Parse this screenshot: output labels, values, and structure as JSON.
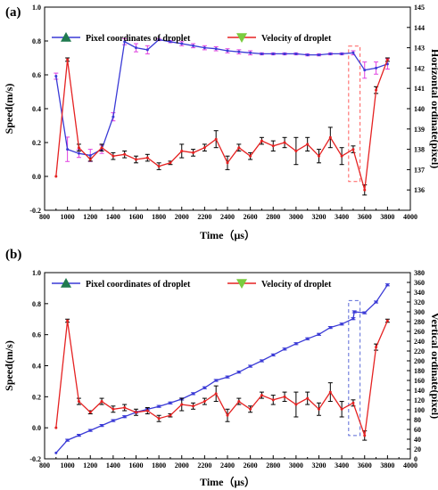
{
  "chart_data": [
    {
      "panel_label": "(a)",
      "type": "line",
      "xlabel": "Time（μs）",
      "ylabel": "Speed(m/s)",
      "y2label": "Horizontal ordinate(pixel)",
      "xlim": [
        800,
        4000
      ],
      "ylim": [
        -0.2,
        1.0
      ],
      "y2lim": [
        135,
        145
      ],
      "xticks": [
        800,
        900,
        1000,
        1100,
        1200,
        1300,
        1400,
        1500,
        1600,
        1700,
        1800,
        1900,
        2000,
        2100,
        2200,
        2300,
        2400,
        2500,
        2600,
        2700,
        2800,
        2900,
        3000,
        3100,
        3200,
        3300,
        3400,
        3500,
        3600,
        3700,
        3800,
        3900,
        4000
      ],
      "xtick_labels": [
        "800",
        "",
        "1000",
        "",
        "1200",
        "",
        "1400",
        "",
        "1600",
        "",
        "1800",
        "",
        "2000",
        "",
        "2200",
        "",
        "2400",
        "",
        "2600",
        "",
        "2800",
        "",
        "3000",
        "",
        "3200",
        "",
        "3400",
        "",
        "3600",
        "",
        "3800",
        "",
        "4000"
      ],
      "yticks": [
        -0.2,
        0.0,
        0.2,
        0.4,
        0.6,
        0.8,
        1.0
      ],
      "ytick_labels": [
        "-0.2",
        "0.0",
        "0.2",
        "0.4",
        "0.6",
        "0.8",
        "1.0"
      ],
      "y2ticks": [
        136,
        137,
        138,
        139,
        140,
        141,
        142,
        143,
        144,
        145
      ],
      "y2tick_labels": [
        "136",
        "137",
        "138",
        "139",
        "140",
        "141",
        "142",
        "143",
        "144",
        "145"
      ],
      "legend_position": "top",
      "legend": [
        {
          "label": "Pixel coordinates of droplet",
          "marker": "up-triangle",
          "color": "#1f7a4f"
        },
        {
          "label": "Velocity of droplet",
          "marker": "down-triangle",
          "color": "#7acc3f"
        }
      ],
      "series": [
        {
          "name": "Pixel coordinates of droplet",
          "axis": "right",
          "color": "#3a3ad6",
          "error_color": "#e040e0",
          "x": [
            900,
            1000,
            1100,
            1200,
            1300,
            1400,
            1500,
            1600,
            1700,
            1800,
            1900,
            2000,
            2100,
            2200,
            2300,
            2400,
            2500,
            2600,
            2700,
            2800,
            2900,
            3000,
            3100,
            3200,
            3300,
            3400,
            3500,
            3600,
            3700,
            3800
          ],
          "y": [
            141.6,
            138.0,
            137.8,
            137.7,
            138.0,
            139.6,
            143.3,
            143.0,
            142.9,
            143.4,
            143.3,
            143.2,
            143.1,
            143.0,
            142.95,
            142.85,
            142.8,
            142.75,
            142.7,
            142.7,
            142.7,
            142.7,
            142.65,
            142.65,
            142.7,
            142.7,
            142.75,
            141.9,
            142.0,
            142.2
          ],
          "error": [
            0.15,
            0.6,
            0.2,
            0.3,
            0.2,
            0.2,
            0.15,
            0.2,
            0.2,
            0.05,
            0.05,
            0.1,
            0.1,
            0.1,
            0.1,
            0.1,
            0.1,
            0.1,
            0.05,
            0.05,
            0.05,
            0.05,
            0.05,
            0.05,
            0.05,
            0.05,
            0.1,
            0.4,
            0.3,
            0.25
          ]
        },
        {
          "name": "Velocity of droplet",
          "axis": "left",
          "color": "#e52222",
          "error_color": "#000000",
          "x": [
            900,
            1000,
            1100,
            1200,
            1300,
            1400,
            1500,
            1600,
            1700,
            1800,
            1900,
            2000,
            2100,
            2200,
            2300,
            2400,
            2500,
            2600,
            2700,
            2800,
            2900,
            3000,
            3100,
            3200,
            3300,
            3400,
            3500,
            3600,
            3700,
            3800
          ],
          "y": [
            0.0,
            0.69,
            0.17,
            0.1,
            0.17,
            0.12,
            0.13,
            0.1,
            0.11,
            0.06,
            0.08,
            0.15,
            0.14,
            0.17,
            0.22,
            0.08,
            0.17,
            0.12,
            0.21,
            0.18,
            0.2,
            0.15,
            0.19,
            0.12,
            0.23,
            0.12,
            0.16,
            -0.08,
            0.51,
            0.69
          ],
          "error": [
            0.0,
            0.01,
            0.02,
            0.01,
            0.02,
            0.02,
            0.02,
            0.02,
            0.02,
            0.02,
            0.01,
            0.04,
            0.02,
            0.02,
            0.05,
            0.04,
            0.02,
            0.02,
            0.02,
            0.03,
            0.03,
            0.08,
            0.04,
            0.04,
            0.06,
            0.05,
            0.02,
            0.03,
            0.02,
            0.01
          ]
        }
      ],
      "highlight": {
        "x_from": 3460,
        "x_to": 3560,
        "y_from": -0.03,
        "y_to": 0.77,
        "color": "#ff5a5a"
      }
    },
    {
      "panel_label": "(b)",
      "type": "line",
      "xlabel": "Time（μs）",
      "ylabel": "Speed(m/s)",
      "y2label": "Vertical ordinate(pixel)",
      "xlim": [
        800,
        4000
      ],
      "ylim": [
        -0.2,
        1.0
      ],
      "y2lim": [
        0,
        380
      ],
      "xticks": [
        800,
        900,
        1000,
        1100,
        1200,
        1300,
        1400,
        1500,
        1600,
        1700,
        1800,
        1900,
        2000,
        2100,
        2200,
        2300,
        2400,
        2500,
        2600,
        2700,
        2800,
        2900,
        3000,
        3100,
        3200,
        3300,
        3400,
        3500,
        3600,
        3700,
        3800,
        3900,
        4000
      ],
      "xtick_labels": [
        "800",
        "",
        "1000",
        "",
        "1200",
        "",
        "1400",
        "",
        "1600",
        "",
        "1800",
        "",
        "2000",
        "",
        "2200",
        "",
        "2400",
        "",
        "2600",
        "",
        "2800",
        "",
        "3000",
        "",
        "3200",
        "",
        "3400",
        "",
        "3600",
        "",
        "3800",
        "",
        "4000"
      ],
      "yticks": [
        -0.2,
        0.0,
        0.2,
        0.4,
        0.6,
        0.8,
        1.0
      ],
      "ytick_labels": [
        "-0.2",
        "0.0",
        "0.2",
        "0.4",
        "0.6",
        "0.8",
        "1.0"
      ],
      "y2ticks": [
        0,
        20,
        40,
        60,
        80,
        100,
        120,
        140,
        160,
        180,
        200,
        220,
        240,
        260,
        280,
        300,
        320,
        340,
        360,
        380
      ],
      "y2tick_labels": [
        "0",
        "20",
        "40",
        "60",
        "80",
        "100",
        "120",
        "140",
        "160",
        "180",
        "200",
        "220",
        "240",
        "260",
        "280",
        "300",
        "320",
        "340",
        "360",
        "380"
      ],
      "legend_position": "top",
      "legend": [
        {
          "label": "Pixel coordinates of droplet",
          "marker": "up-triangle",
          "color": "#1f7a4f"
        },
        {
          "label": "Velocity of droplet",
          "marker": "down-triangle",
          "color": "#7acc3f"
        }
      ],
      "series": [
        {
          "name": "Pixel coordinates of droplet",
          "axis": "right",
          "color": "#3a3ad6",
          "error_color": "#3a3ad6",
          "x": [
            900,
            1000,
            1100,
            1200,
            1300,
            1400,
            1500,
            1600,
            1700,
            1800,
            1900,
            2000,
            2100,
            2200,
            2300,
            2400,
            2500,
            2600,
            2700,
            2800,
            2900,
            3000,
            3100,
            3200,
            3300,
            3400,
            3500,
            3510,
            3600,
            3700,
            3800
          ],
          "y": [
            12,
            38,
            48,
            58,
            68,
            78,
            86,
            95,
            101,
            107,
            114,
            122,
            133,
            145,
            160,
            167,
            177,
            189,
            200,
            212,
            224,
            235,
            245,
            254,
            268,
            275,
            286,
            300,
            298,
            320,
            355
          ],
          "error": [
            0,
            2,
            2,
            2,
            2,
            2,
            2,
            2,
            2,
            2,
            2,
            2,
            2,
            2,
            2,
            2,
            2,
            2,
            2,
            2,
            2,
            2,
            2,
            2,
            2,
            2,
            2,
            2,
            2,
            2,
            2
          ]
        },
        {
          "name": "Velocity of droplet",
          "axis": "left",
          "color": "#e52222",
          "error_color": "#000000",
          "x": [
            900,
            1000,
            1100,
            1200,
            1300,
            1400,
            1500,
            1600,
            1700,
            1800,
            1900,
            2000,
            2100,
            2200,
            2300,
            2400,
            2500,
            2600,
            2700,
            2800,
            2900,
            3000,
            3100,
            3200,
            3300,
            3400,
            3500,
            3600,
            3700,
            3800
          ],
          "y": [
            0.0,
            0.69,
            0.17,
            0.1,
            0.17,
            0.12,
            0.13,
            0.1,
            0.11,
            0.06,
            0.08,
            0.15,
            0.14,
            0.17,
            0.22,
            0.08,
            0.17,
            0.12,
            0.21,
            0.18,
            0.2,
            0.15,
            0.19,
            0.12,
            0.23,
            0.12,
            0.16,
            -0.05,
            0.52,
            0.69
          ],
          "error": [
            0.0,
            0.01,
            0.02,
            0.01,
            0.02,
            0.02,
            0.02,
            0.02,
            0.02,
            0.02,
            0.01,
            0.04,
            0.02,
            0.02,
            0.05,
            0.04,
            0.02,
            0.02,
            0.02,
            0.03,
            0.03,
            0.08,
            0.04,
            0.04,
            0.06,
            0.05,
            0.02,
            0.03,
            0.02,
            0.01
          ]
        }
      ],
      "highlight": {
        "x_from": 3460,
        "x_to": 3560,
        "y_from": -0.05,
        "y_to": 0.82,
        "color": "#5a6ad8"
      }
    }
  ]
}
